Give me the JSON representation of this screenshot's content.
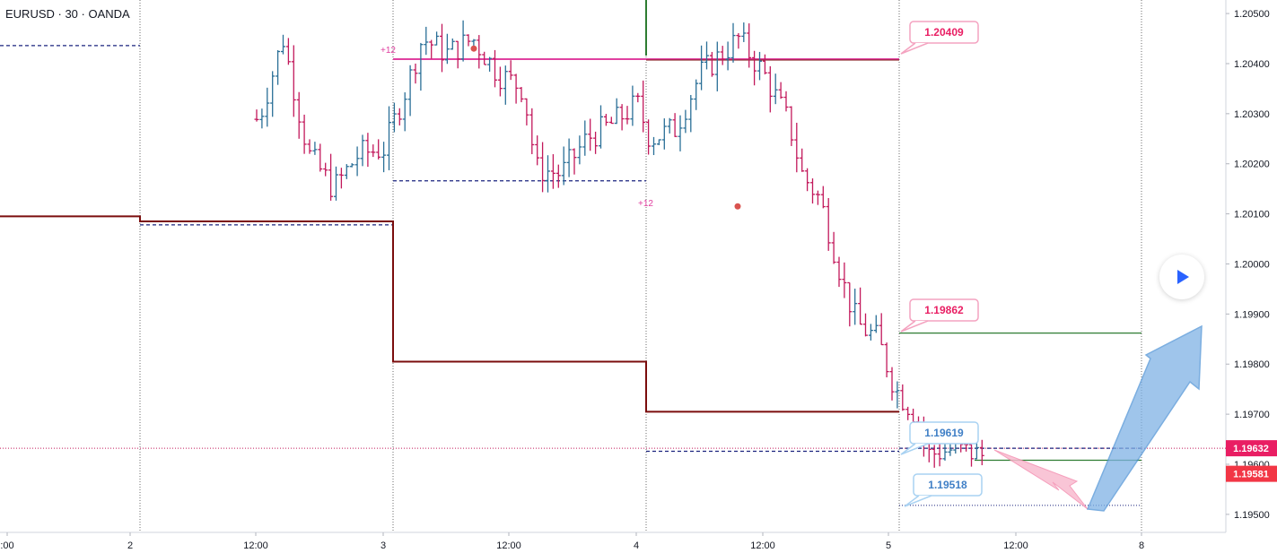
{
  "header": {
    "symbol_label": "EURUSD · 30 · OANDA"
  },
  "colors": {
    "up_bar": "#2a6f97",
    "down_bar": "#c2185b",
    "level_line": "#7b0d0d",
    "target_line": "#2e7d32",
    "pink_line": "#e040a0",
    "dash_line": "#1a237e",
    "callout_pink": "#e91e63",
    "callout_blue": "#3f7fc6",
    "arrow_blue": "#7fb2e5",
    "arrow_pink": "#f8bbd0",
    "price_badge_current": "#e91e63",
    "price_badge_low": "#f23645"
  },
  "chart_data": {
    "type": "ohlc",
    "symbol": "EURUSD",
    "timeframe": "30",
    "source": "OANDA",
    "x_axis": {
      "tick_labels": [
        ":00",
        "2",
        "12:00",
        "3",
        "12:00",
        "4",
        "12:00",
        "5",
        "12:00",
        "8"
      ]
    },
    "y_axis": {
      "range": [
        1.19464,
        1.20527
      ],
      "tick_labels": [
        "1.20500",
        "1.20400",
        "1.20300",
        "1.20200",
        "1.20100",
        "1.20000",
        "1.19900",
        "1.19800",
        "1.19700",
        "1.19600",
        "1.19500"
      ]
    },
    "ohlc_path": [
      {
        "day": 1.45,
        "price": 1.2039
      },
      {
        "day": 1.5,
        "price": 1.2028
      },
      {
        "day": 1.6,
        "price": 1.2045
      },
      {
        "day": 1.7,
        "price": 1.2022
      },
      {
        "day": 1.8,
        "price": 1.2015
      },
      {
        "day": 1.9,
        "price": 1.2022
      },
      {
        "day": 2.0,
        "price": 1.2023
      },
      {
        "day": 2.1,
        "price": 1.2037
      },
      {
        "day": 2.15,
        "price": 1.2045
      },
      {
        "day": 2.25,
        "price": 1.2042
      },
      {
        "day": 2.35,
        "price": 1.2045
      },
      {
        "day": 2.45,
        "price": 1.2038
      },
      {
        "day": 2.55,
        "price": 1.2035
      },
      {
        "day": 2.6,
        "price": 1.2019
      },
      {
        "day": 2.7,
        "price": 1.2018
      },
      {
        "day": 2.8,
        "price": 1.2025
      },
      {
        "day": 2.9,
        "price": 1.2028
      },
      {
        "day": 3.0,
        "price": 1.2032
      },
      {
        "day": 3.05,
        "price": 1.2025
      },
      {
        "day": 3.15,
        "price": 1.2027
      },
      {
        "day": 3.25,
        "price": 1.2038
      },
      {
        "day": 3.4,
        "price": 1.2045
      },
      {
        "day": 3.5,
        "price": 1.2038
      },
      {
        "day": 3.6,
        "price": 1.2028
      },
      {
        "day": 3.65,
        "price": 1.2018
      },
      {
        "day": 3.72,
        "price": 1.2013
      },
      {
        "day": 3.75,
        "price": 1.2008
      },
      {
        "day": 3.82,
        "price": 1.1995
      },
      {
        "day": 3.87,
        "price": 1.1988
      },
      {
        "day": 3.95,
        "price": 1.1985
      },
      {
        "day": 4.02,
        "price": 1.1975
      },
      {
        "day": 4.1,
        "price": 1.197
      },
      {
        "day": 4.15,
        "price": 1.1962
      },
      {
        "day": 4.25,
        "price": 1.1963
      },
      {
        "day": 4.35,
        "price": 1.1962
      },
      {
        "day": 4.45,
        "price": 1.196
      },
      {
        "day": 4.5,
        "price": 1.1963
      },
      {
        "day": 4.55,
        "price": 1.1961
      },
      {
        "day": 4.62,
        "price": 1.1966
      },
      {
        "day": 4.65,
        "price": 1.1962
      },
      {
        "day": 4.7,
        "price": 1.1958
      },
      {
        "day": 4.75,
        "price": 1.1954
      },
      {
        "day": 4.8,
        "price": 1.1955
      },
      {
        "day": 4.85,
        "price": 1.1958
      },
      {
        "day": 4.9,
        "price": 1.1963
      },
      {
        "day": 4.95,
        "price": 1.1965
      }
    ],
    "level_steps": [
      {
        "from_day": 0.0,
        "to_day": 1.035,
        "price": 1.20095
      },
      {
        "from_day": 1.035,
        "to_day": 2.035,
        "price": 1.20085
      },
      {
        "from_day": 2.035,
        "to_day": 3.035,
        "price": 1.19805
      },
      {
        "from_day": 3.035,
        "to_day": 4.035,
        "price": 1.19705
      }
    ],
    "dashed_levels": [
      {
        "from_day": 0.0,
        "to_day": 1.035,
        "price": 1.20436
      },
      {
        "from_day": 1.035,
        "to_day": 2.035,
        "price": 1.20078
      },
      {
        "from_day": 2.035,
        "to_day": 3.035,
        "price": 1.20166
      },
      {
        "from_day": 3.035,
        "to_day": 4.035,
        "price": 1.19626
      },
      {
        "from_day": 4.035,
        "to_day": 4.95,
        "price": 1.19632
      }
    ],
    "pink_line": {
      "from_day": 2.035,
      "to_day": 4.035,
      "price": 1.20409
    },
    "target_lines": [
      {
        "from_day": 4.035,
        "to_day": 4.95,
        "price": 1.19862
      },
      {
        "from_day": 4.35,
        "to_day": 4.95,
        "price": 1.19608
      }
    ],
    "low_dotted_line": {
      "from_day": 4.035,
      "to_day": 4.95,
      "price": 1.19518
    },
    "session_separators": [
      1.035,
      2.035,
      3.035,
      4.035,
      4.95
    ],
    "event_markers": [
      {
        "day": 2.33,
        "price": 1.2043,
        "label": "+12"
      },
      {
        "day": 3.36,
        "price": 1.20115,
        "label": "+12"
      }
    ],
    "callouts": [
      {
        "text": "1.20409",
        "style": "pink",
        "day": 4.035,
        "price": 1.20409
      },
      {
        "text": "1.19862",
        "style": "pink",
        "day": 4.035,
        "price": 1.19862
      },
      {
        "text": "1.19619",
        "style": "blue",
        "day": 4.035,
        "price": 1.19619
      },
      {
        "text": "1.19518",
        "style": "blue",
        "day": 4.035,
        "price": 1.19518
      }
    ],
    "price_badges": [
      {
        "text": "1.19632",
        "price": 1.19632,
        "kind": "current"
      },
      {
        "text": "1.19581",
        "price": 1.19581,
        "kind": "low"
      }
    ]
  },
  "controls": {
    "play_icon": "play-icon"
  }
}
